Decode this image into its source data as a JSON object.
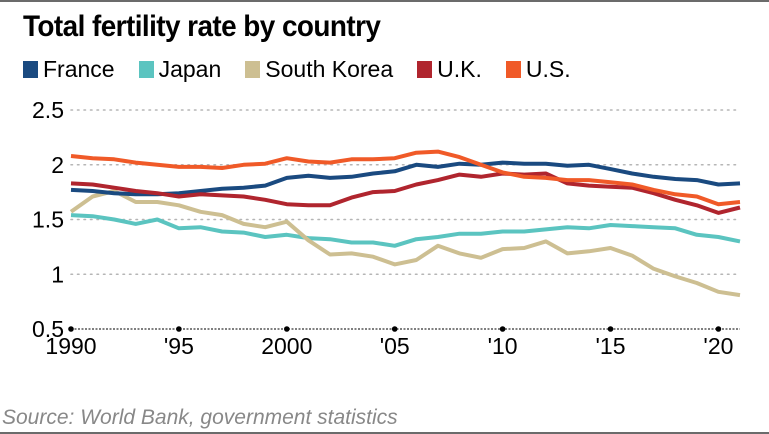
{
  "chart_data": {
    "type": "line",
    "title": "Total fertility rate by country",
    "xlabel": "",
    "ylabel": "",
    "x": [
      1990,
      1991,
      1992,
      1993,
      1994,
      1995,
      1996,
      1997,
      1998,
      1999,
      2000,
      2001,
      2002,
      2003,
      2004,
      2005,
      2006,
      2007,
      2008,
      2009,
      2010,
      2011,
      2012,
      2013,
      2014,
      2015,
      2016,
      2017,
      2018,
      2019,
      2020,
      2021
    ],
    "xlim": [
      1990,
      2021
    ],
    "ylim": [
      0.5,
      2.5
    ],
    "x_ticks": [
      1990,
      1995,
      2000,
      2005,
      2010,
      2015,
      2020
    ],
    "x_tick_labels": [
      "1990",
      "'95",
      "2000",
      "'05",
      "'10",
      "'15",
      "'20"
    ],
    "y_ticks": [
      0.5,
      1,
      1.5,
      2,
      2.5
    ],
    "y_tick_labels": [
      "0.5",
      "1",
      "1.5",
      "2",
      "2.5"
    ],
    "grid": true,
    "legend_position": "top-left",
    "series": [
      {
        "name": "France",
        "color": "#1a4a80",
        "values": [
          1.77,
          1.76,
          1.74,
          1.73,
          1.73,
          1.74,
          1.76,
          1.78,
          1.79,
          1.81,
          1.88,
          1.9,
          1.88,
          1.89,
          1.92,
          1.94,
          2.0,
          1.98,
          2.01,
          2.0,
          2.02,
          2.01,
          2.01,
          1.99,
          2.0,
          1.96,
          1.92,
          1.89,
          1.87,
          1.86,
          1.82,
          1.83
        ]
      },
      {
        "name": "Japan",
        "color": "#5bc4c0",
        "values": [
          1.54,
          1.53,
          1.5,
          1.46,
          1.5,
          1.42,
          1.43,
          1.39,
          1.38,
          1.34,
          1.36,
          1.33,
          1.32,
          1.29,
          1.29,
          1.26,
          1.32,
          1.34,
          1.37,
          1.37,
          1.39,
          1.39,
          1.41,
          1.43,
          1.42,
          1.45,
          1.44,
          1.43,
          1.42,
          1.36,
          1.34,
          1.3
        ]
      },
      {
        "name": "South Korea",
        "color": "#cdbf92",
        "values": [
          1.57,
          1.71,
          1.76,
          1.66,
          1.66,
          1.63,
          1.57,
          1.54,
          1.46,
          1.43,
          1.48,
          1.31,
          1.18,
          1.19,
          1.16,
          1.09,
          1.13,
          1.26,
          1.19,
          1.15,
          1.23,
          1.24,
          1.3,
          1.19,
          1.21,
          1.24,
          1.17,
          1.05,
          0.98,
          0.92,
          0.84,
          0.81
        ]
      },
      {
        "name": "U.K.",
        "color": "#b0252e",
        "values": [
          1.83,
          1.82,
          1.79,
          1.76,
          1.74,
          1.71,
          1.73,
          1.72,
          1.71,
          1.68,
          1.64,
          1.63,
          1.63,
          1.7,
          1.75,
          1.76,
          1.82,
          1.86,
          1.91,
          1.89,
          1.92,
          1.91,
          1.92,
          1.83,
          1.81,
          1.8,
          1.79,
          1.74,
          1.68,
          1.63,
          1.56,
          1.61
        ]
      },
      {
        "name": "U.S.",
        "color": "#f05a28",
        "values": [
          2.08,
          2.06,
          2.05,
          2.02,
          2.0,
          1.98,
          1.98,
          1.97,
          2.0,
          2.01,
          2.06,
          2.03,
          2.02,
          2.05,
          2.05,
          2.06,
          2.11,
          2.12,
          2.07,
          2.0,
          1.93,
          1.89,
          1.88,
          1.86,
          1.86,
          1.84,
          1.82,
          1.77,
          1.73,
          1.71,
          1.64,
          1.66
        ]
      }
    ]
  },
  "source": "Source: World Bank, government statistics"
}
